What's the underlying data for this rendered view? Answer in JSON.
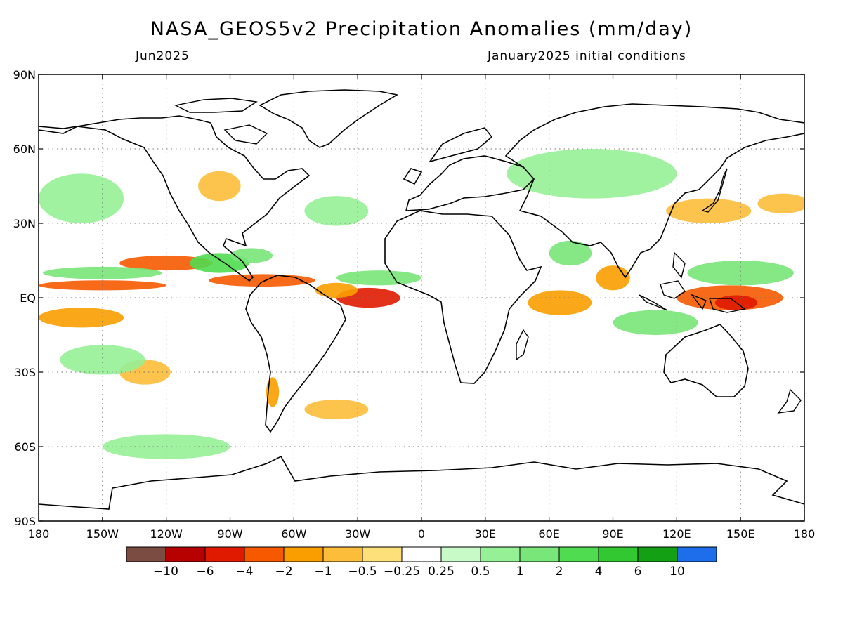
{
  "header": {
    "title": "NASA_GEOS5v2 Precipitation Anomalies (mm/day)",
    "valid_month": "Jun2025",
    "init_conditions": "January2025 initial conditions"
  },
  "map": {
    "projection": "equirectangular",
    "lon_range": [
      -180,
      180
    ],
    "lat_range": [
      -90,
      90
    ],
    "lon_ticks": [
      {
        "value": -180,
        "label": "180"
      },
      {
        "value": -150,
        "label": "150W"
      },
      {
        "value": -120,
        "label": "120W"
      },
      {
        "value": -90,
        "label": "90W"
      },
      {
        "value": -60,
        "label": "60W"
      },
      {
        "value": -30,
        "label": "30W"
      },
      {
        "value": 0,
        "label": "0"
      },
      {
        "value": 30,
        "label": "30E"
      },
      {
        "value": 60,
        "label": "60E"
      },
      {
        "value": 90,
        "label": "90E"
      },
      {
        "value": 120,
        "label": "120E"
      },
      {
        "value": 150,
        "label": "150E"
      },
      {
        "value": 180,
        "label": "180"
      }
    ],
    "lat_ticks": [
      {
        "value": 90,
        "label": "90N"
      },
      {
        "value": 60,
        "label": "60N"
      },
      {
        "value": 30,
        "label": "30N"
      },
      {
        "value": 0,
        "label": "EQ"
      },
      {
        "value": -30,
        "label": "30S"
      },
      {
        "value": -60,
        "label": "60S"
      },
      {
        "value": -90,
        "label": "90S"
      }
    ],
    "grid": true,
    "anomaly_regions": [
      {
        "lon": -120,
        "lat": 14,
        "rlon": 22,
        "rlat": 3,
        "v": -4
      },
      {
        "lon": -75,
        "lat": 7,
        "rlon": 25,
        "rlat": 2.5,
        "v": -4
      },
      {
        "lon": -150,
        "lat": 5,
        "rlon": 30,
        "rlat": 2,
        "v": -4
      },
      {
        "lon": -25,
        "lat": 0,
        "rlon": 15,
        "rlat": 4,
        "v": -6
      },
      {
        "lon": -40,
        "lat": 3,
        "rlon": 10,
        "rlat": 3,
        "v": -2
      },
      {
        "lon": 145,
        "lat": 0,
        "rlon": 25,
        "rlat": 5,
        "v": -4
      },
      {
        "lon": 148,
        "lat": -2,
        "rlon": 10,
        "rlat": 3,
        "v": -6
      },
      {
        "lon": 65,
        "lat": -2,
        "rlon": 15,
        "rlat": 5,
        "v": -2
      },
      {
        "lon": 90,
        "lat": 8,
        "rlon": 8,
        "rlat": 5,
        "v": -2
      },
      {
        "lon": -160,
        "lat": -8,
        "rlon": 20,
        "rlat": 4,
        "v": -2
      },
      {
        "lon": -130,
        "lat": -30,
        "rlon": 12,
        "rlat": 5,
        "v": -1
      },
      {
        "lon": -40,
        "lat": -45,
        "rlon": 15,
        "rlat": 4,
        "v": -1
      },
      {
        "lon": 135,
        "lat": 35,
        "rlon": 20,
        "rlat": 5,
        "v": -1
      },
      {
        "lon": 170,
        "lat": 38,
        "rlon": 12,
        "rlat": 4,
        "v": -1
      },
      {
        "lon": -95,
        "lat": 45,
        "rlon": 10,
        "rlat": 6,
        "v": -1
      },
      {
        "lon": -70,
        "lat": -38,
        "rlon": 3,
        "rlat": 6,
        "v": -2
      },
      {
        "lon": 70,
        "lat": 18,
        "rlon": 10,
        "rlat": 5,
        "v": 1
      },
      {
        "lon": -95,
        "lat": 14,
        "rlon": 14,
        "rlat": 4,
        "v": 2
      },
      {
        "lon": -80,
        "lat": 17,
        "rlon": 10,
        "rlat": 3,
        "v": 1
      },
      {
        "lon": -150,
        "lat": 10,
        "rlon": 28,
        "rlat": 2.5,
        "v": 1
      },
      {
        "lon": -20,
        "lat": 8,
        "rlon": 20,
        "rlat": 3,
        "v": 1
      },
      {
        "lon": 150,
        "lat": 10,
        "rlon": 25,
        "rlat": 5,
        "v": 1
      },
      {
        "lon": 110,
        "lat": -10,
        "rlon": 20,
        "rlat": 5,
        "v": 1
      },
      {
        "lon": -150,
        "lat": -25,
        "rlon": 20,
        "rlat": 6,
        "v": 0.5
      },
      {
        "lon": -40,
        "lat": 35,
        "rlon": 15,
        "rlat": 6,
        "v": 0.5
      },
      {
        "lon": 80,
        "lat": 50,
        "rlon": 40,
        "rlat": 10,
        "v": 0.5
      },
      {
        "lon": -160,
        "lat": 40,
        "rlon": 20,
        "rlat": 10,
        "v": 0.5
      },
      {
        "lon": -120,
        "lat": -60,
        "rlon": 30,
        "rlat": 5,
        "v": 0.5
      }
    ]
  },
  "colorbar": {
    "colors": [
      "#7b4c41",
      "#b70000",
      "#e01a00",
      "#f55a00",
      "#fa9e00",
      "#fcbe3a",
      "#fde07a",
      "#ffffff",
      "#c8fac8",
      "#96f096",
      "#78e678",
      "#50dc50",
      "#32c832",
      "#14a014",
      "#1e6eeb"
    ],
    "labels": [
      "−10",
      "−6",
      "−4",
      "−2",
      "−1",
      "−0.5",
      "−0.25",
      "0.25",
      "0.5",
      "1",
      "2",
      "4",
      "6",
      "10"
    ],
    "thresholds": [
      -10,
      -6,
      -4,
      -2,
      -1,
      -0.5,
      -0.25,
      0.25,
      0.5,
      1,
      2,
      4,
      6,
      10
    ]
  }
}
